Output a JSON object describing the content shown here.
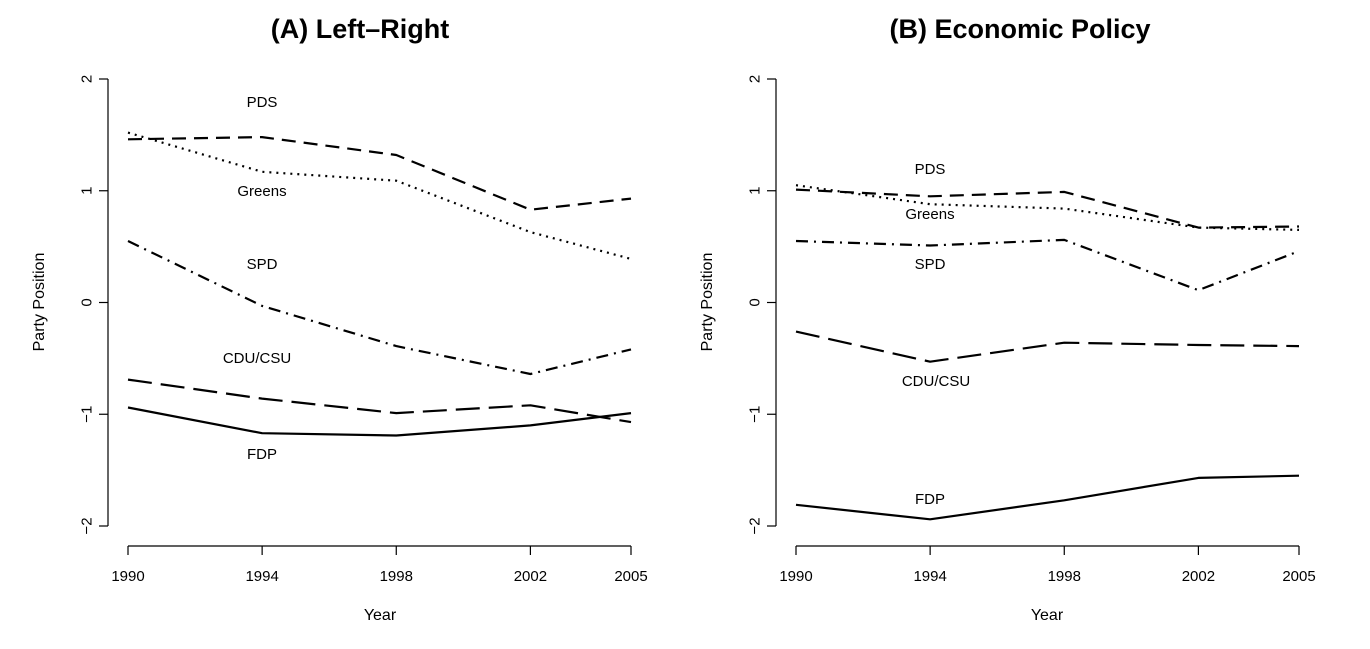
{
  "chart_data": [
    {
      "type": "line",
      "title": "(A) Left–Right",
      "xlabel": "Year",
      "ylabel": "Party Position",
      "x": [
        1990,
        1994,
        1998,
        2002,
        2005
      ],
      "x_tick_labels": [
        "1990",
        "1994",
        "1998",
        "2002",
        "2005"
      ],
      "ylim": [
        -2,
        2
      ],
      "y_ticks": [
        -2,
        -1,
        0,
        1,
        2
      ],
      "y_tick_labels": [
        "−2",
        "−1",
        "0",
        "1",
        "2"
      ],
      "grid": false,
      "series": [
        {
          "name": "PDS",
          "style": "dashed",
          "values": [
            1.46,
            1.48,
            1.32,
            0.83,
            0.93
          ]
        },
        {
          "name": "Greens",
          "style": "dotted",
          "values": [
            1.52,
            1.17,
            1.09,
            0.63,
            0.39
          ]
        },
        {
          "name": "SPD",
          "style": "dashdot",
          "values": [
            0.55,
            -0.03,
            -0.39,
            -0.64,
            -0.42
          ]
        },
        {
          "name": "CDU/CSU",
          "style": "longdash",
          "values": [
            -0.69,
            -0.86,
            -0.99,
            -0.92,
            -1.07
          ]
        },
        {
          "name": "FDP",
          "style": "solid",
          "values": [
            -0.94,
            -1.17,
            -1.19,
            -1.1,
            -0.99
          ]
        }
      ]
    },
    {
      "type": "line",
      "title": "(B) Economic Policy",
      "xlabel": "Year",
      "ylabel": "Party Position",
      "x": [
        1990,
        1994,
        1998,
        2002,
        2005
      ],
      "x_tick_labels": [
        "1990",
        "1994",
        "1998",
        "2002",
        "2005"
      ],
      "ylim": [
        -2,
        2
      ],
      "y_ticks": [
        -2,
        -1,
        0,
        1,
        2
      ],
      "y_tick_labels": [
        "−2",
        "−1",
        "0",
        "1",
        "2"
      ],
      "grid": false,
      "series": [
        {
          "name": "PDS",
          "style": "dashed",
          "values": [
            1.01,
            0.95,
            0.99,
            0.67,
            0.68
          ]
        },
        {
          "name": "Greens",
          "style": "dotted",
          "values": [
            1.05,
            0.88,
            0.84,
            0.67,
            0.65
          ]
        },
        {
          "name": "SPD",
          "style": "dashdot",
          "values": [
            0.55,
            0.51,
            0.56,
            0.11,
            0.46
          ]
        },
        {
          "name": "CDU/CSU",
          "style": "longdash",
          "values": [
            -0.26,
            -0.53,
            -0.36,
            -0.38,
            -0.39
          ]
        },
        {
          "name": "FDP",
          "style": "solid",
          "values": [
            -1.81,
            -1.94,
            -1.77,
            -1.57,
            -1.55
          ]
        }
      ]
    }
  ]
}
